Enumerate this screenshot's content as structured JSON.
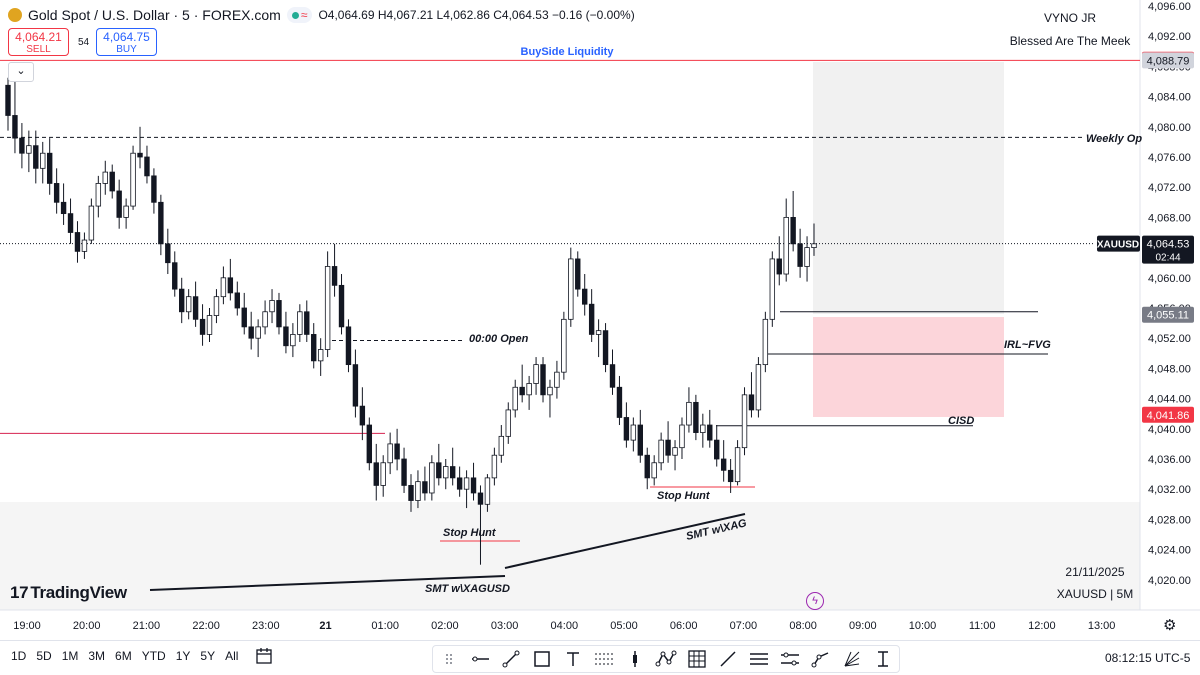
{
  "header": {
    "title": "Gold Spot / U.S. Dollar · 5 · FOREX.com",
    "ohlc": "O4,064.69  H4,067.21  L4,062.86  C4,064.53  −0.16 (−0.00%)",
    "sell_price": "4,064.21",
    "sell_label": "SELL",
    "buy_price": "4,064.75",
    "buy_label": "BUY",
    "spread": "54",
    "collapse_glyph": "⌄"
  },
  "watermark": {
    "name": "VYNO JR",
    "quote": "Blessed Are The Meek",
    "logo_text": "TradingView",
    "date": "21/11/2025",
    "symbol_interval": "XAUUSD | 5M"
  },
  "chart_data": {
    "type": "candlestick",
    "symbol": "XAUUSD",
    "interval": "5",
    "y_ticks": [
      "4,096.00",
      "4,092.00",
      "4,088.00",
      "4,084.00",
      "4,080.00",
      "4,076.00",
      "4,072.00",
      "4,068.00",
      "4,064.00",
      "4,060.00",
      "4,056.00",
      "4,052.00",
      "4,048.00",
      "4,044.00",
      "4,040.00",
      "4,036.00",
      "4,032.00",
      "4,028.00",
      "4,024.00",
      "4,020.00"
    ],
    "x_ticks": [
      "19:00",
      "20:00",
      "21:00",
      "22:00",
      "23:00",
      "21",
      "01:00",
      "02:00",
      "03:00",
      "04:00",
      "05:00",
      "06:00",
      "07:00",
      "08:00",
      "09:00",
      "10:00",
      "11:00",
      "12:00",
      "13:00"
    ],
    "ylim": [
      4017.5,
      4097.5
    ],
    "price_labels": [
      {
        "text": "4,088.88",
        "value": 4088.88,
        "color": "#f23645"
      },
      {
        "text": "4,088.79",
        "value": 4088.79,
        "color": "#d1d4dc"
      },
      {
        "text": "4,055.11",
        "value": 4055.11,
        "color": "#787b86"
      },
      {
        "text": "4,041.86",
        "value": 4041.86,
        "color": "#f23645"
      }
    ],
    "current_price": {
      "symbol": "XAUUSD",
      "price": "4,064.53",
      "countdown": "02:44",
      "value": 4064.53
    },
    "annotations": [
      "BuySide Liquidity",
      "Weekly Op",
      "00:00 Open",
      "IRL~FVG",
      "CISD",
      "Stop Hunt",
      "Stop Hunt",
      "SMT w\\XAGUSD",
      "SMT w\\XAG"
    ],
    "levels": {
      "buyside": 4088.8,
      "weekly_open": 4078.6,
      "open_0000": 4051.7,
      "irl_top": 4055.5,
      "irl_fvg": 4049.9,
      "cisd": 4040.4,
      "left_red": 4039.4
    },
    "candles": [
      [
        4085.5,
        4086.5,
        4079.5,
        4081.5
      ],
      [
        4081.5,
        4086.0,
        4076.5,
        4078.5
      ],
      [
        4078.5,
        4080.5,
        4074.5,
        4076.5
      ],
      [
        4076.5,
        4079.5,
        4074.0,
        4077.5
      ],
      [
        4077.5,
        4079.5,
        4072.5,
        4074.5
      ],
      [
        4074.5,
        4078.0,
        4072.5,
        4076.5
      ],
      [
        4076.5,
        4078.5,
        4071.0,
        4072.5
      ],
      [
        4072.5,
        4074.5,
        4068.5,
        4070.0
      ],
      [
        4070.0,
        4072.5,
        4067.0,
        4068.5
      ],
      [
        4068.5,
        4070.5,
        4064.5,
        4066.0
      ],
      [
        4066.0,
        4067.5,
        4062.0,
        4063.5
      ],
      [
        4063.5,
        4066.0,
        4062.5,
        4065.0
      ],
      [
        4065.0,
        4070.5,
        4064.5,
        4069.5
      ],
      [
        4069.5,
        4073.5,
        4068.0,
        4072.5
      ],
      [
        4072.5,
        4075.5,
        4071.0,
        4074.0
      ],
      [
        4074.0,
        4075.0,
        4070.5,
        4071.5
      ],
      [
        4071.5,
        4073.0,
        4066.5,
        4068.0
      ],
      [
        4068.0,
        4070.5,
        4066.5,
        4069.5
      ],
      [
        4069.5,
        4077.5,
        4069.0,
        4076.5
      ],
      [
        4076.5,
        4080.0,
        4074.5,
        4076.0
      ],
      [
        4076.0,
        4077.5,
        4072.5,
        4073.5
      ],
      [
        4073.5,
        4074.5,
        4068.5,
        4070.0
      ],
      [
        4070.0,
        4071.0,
        4063.0,
        4064.5
      ],
      [
        4064.5,
        4066.5,
        4060.5,
        4062.0
      ],
      [
        4062.0,
        4063.5,
        4057.5,
        4058.5
      ],
      [
        4058.5,
        4060.0,
        4054.0,
        4055.5
      ],
      [
        4055.5,
        4058.5,
        4054.5,
        4057.5
      ],
      [
        4057.5,
        4059.5,
        4053.5,
        4054.5
      ],
      [
        4054.5,
        4056.5,
        4051.0,
        4052.5
      ],
      [
        4052.5,
        4056.0,
        4051.5,
        4055.0
      ],
      [
        4055.0,
        4058.5,
        4054.0,
        4057.5
      ],
      [
        4057.5,
        4061.5,
        4056.5,
        4060.0
      ],
      [
        4060.0,
        4062.5,
        4057.0,
        4058.0
      ],
      [
        4058.0,
        4059.5,
        4055.0,
        4056.0
      ],
      [
        4056.0,
        4058.0,
        4052.5,
        4053.5
      ],
      [
        4053.5,
        4055.5,
        4050.5,
        4052.0
      ],
      [
        4052.0,
        4054.5,
        4049.5,
        4053.5
      ],
      [
        4053.5,
        4057.0,
        4052.5,
        4055.5
      ],
      [
        4055.5,
        4058.5,
        4054.0,
        4057.0
      ],
      [
        4057.0,
        4058.0,
        4052.5,
        4053.5
      ],
      [
        4053.5,
        4055.5,
        4050.0,
        4051.0
      ],
      [
        4051.0,
        4054.0,
        4049.5,
        4052.5
      ],
      [
        4052.5,
        4056.5,
        4051.5,
        4055.5
      ],
      [
        4055.5,
        4057.0,
        4051.5,
        4052.5
      ],
      [
        4052.5,
        4054.0,
        4048.0,
        4049.0
      ],
      [
        4049.0,
        4052.0,
        4047.0,
        4050.5
      ],
      [
        4050.5,
        4063.5,
        4049.5,
        4061.5
      ],
      [
        4061.5,
        4064.5,
        4057.5,
        4059.0
      ],
      [
        4059.0,
        4060.5,
        4052.5,
        4053.5
      ],
      [
        4053.5,
        4054.5,
        4047.5,
        4048.5
      ],
      [
        4048.5,
        4050.5,
        4041.5,
        4043.0
      ],
      [
        4043.0,
        4045.5,
        4038.5,
        4040.5
      ],
      [
        4040.5,
        4041.5,
        4034.5,
        4035.5
      ],
      [
        4035.5,
        4038.0,
        4030.5,
        4032.5
      ],
      [
        4032.5,
        4036.5,
        4031.0,
        4035.5
      ],
      [
        4035.5,
        4039.5,
        4034.0,
        4038.0
      ],
      [
        4038.0,
        4040.0,
        4034.5,
        4036.0
      ],
      [
        4036.0,
        4037.5,
        4031.5,
        4032.5
      ],
      [
        4032.5,
        4034.0,
        4029.0,
        4030.5
      ],
      [
        4030.5,
        4034.5,
        4029.5,
        4033.0
      ],
      [
        4033.0,
        4035.0,
        4030.5,
        4031.5
      ],
      [
        4031.5,
        4036.5,
        4030.5,
        4035.5
      ],
      [
        4035.5,
        4038.0,
        4032.5,
        4033.5
      ],
      [
        4033.5,
        4036.0,
        4032.0,
        4035.0
      ],
      [
        4035.0,
        4037.5,
        4032.5,
        4033.5
      ],
      [
        4033.5,
        4035.0,
        4031.0,
        4032.0
      ],
      [
        4032.0,
        4034.5,
        4029.5,
        4033.5
      ],
      [
        4033.5,
        4035.5,
        4030.5,
        4031.5
      ],
      [
        4031.5,
        4032.5,
        4022.0,
        4030.0
      ],
      [
        4030.0,
        4034.0,
        4029.0,
        4033.5
      ],
      [
        4033.5,
        4037.5,
        4032.5,
        4036.5
      ],
      [
        4036.5,
        4040.5,
        4035.5,
        4039.0
      ],
      [
        4039.0,
        4043.5,
        4038.0,
        4042.5
      ],
      [
        4042.5,
        4046.5,
        4041.5,
        4045.5
      ],
      [
        4045.5,
        4048.5,
        4043.5,
        4044.5
      ],
      [
        4044.5,
        4047.0,
        4042.5,
        4046.0
      ],
      [
        4046.0,
        4049.5,
        4044.5,
        4048.5
      ],
      [
        4048.5,
        4049.5,
        4043.5,
        4044.5
      ],
      [
        4044.5,
        4046.5,
        4041.5,
        4045.5
      ],
      [
        4045.5,
        4049.0,
        4044.0,
        4047.5
      ],
      [
        4047.5,
        4055.5,
        4046.5,
        4054.5
      ],
      [
        4054.5,
        4064.0,
        4053.5,
        4062.5
      ],
      [
        4062.5,
        4063.5,
        4057.5,
        4058.5
      ],
      [
        4058.5,
        4060.5,
        4055.0,
        4056.5
      ],
      [
        4056.5,
        4058.5,
        4051.5,
        4052.5
      ],
      [
        4052.5,
        4054.5,
        4049.5,
        4053.0
      ],
      [
        4053.0,
        4054.0,
        4047.5,
        4048.5
      ],
      [
        4048.5,
        4050.5,
        4044.5,
        4045.5
      ],
      [
        4045.5,
        4047.0,
        4040.5,
        4041.5
      ],
      [
        4041.5,
        4043.5,
        4037.5,
        4038.5
      ],
      [
        4038.5,
        4041.5,
        4037.0,
        4040.5
      ],
      [
        4040.5,
        4042.5,
        4035.5,
        4036.5
      ],
      [
        4036.5,
        4037.5,
        4032.0,
        4033.5
      ],
      [
        4033.5,
        4036.5,
        4032.5,
        4035.5
      ],
      [
        4035.5,
        4039.5,
        4034.5,
        4038.5
      ],
      [
        4038.5,
        4041.0,
        4035.5,
        4036.5
      ],
      [
        4036.5,
        4038.5,
        4034.5,
        4037.5
      ],
      [
        4037.5,
        4041.5,
        4036.0,
        4040.5
      ],
      [
        4040.5,
        4045.5,
        4039.5,
        4043.5
      ],
      [
        4043.5,
        4044.5,
        4038.5,
        4039.5
      ],
      [
        4039.5,
        4042.0,
        4037.5,
        4040.5
      ],
      [
        4040.5,
        4042.5,
        4037.5,
        4038.5
      ],
      [
        4038.5,
        4040.5,
        4035.0,
        4036.0
      ],
      [
        4036.0,
        4038.5,
        4033.0,
        4034.5
      ],
      [
        4034.5,
        4036.0,
        4031.5,
        4033.0
      ],
      [
        4033.0,
        4038.5,
        4032.5,
        4037.5
      ],
      [
        4037.5,
        4045.5,
        4036.5,
        4044.5
      ],
      [
        4044.5,
        4047.5,
        4041.5,
        4042.5
      ],
      [
        4042.5,
        4049.5,
        4041.5,
        4048.5
      ],
      [
        4048.5,
        4055.5,
        4047.5,
        4054.5
      ],
      [
        4054.5,
        4063.5,
        4053.5,
        4062.5
      ],
      [
        4062.5,
        4065.5,
        4059.0,
        4060.5
      ],
      [
        4060.5,
        4070.5,
        4059.5,
        4068.0
      ],
      [
        4068.0,
        4071.5,
        4063.5,
        4064.5
      ],
      [
        4064.5,
        4066.5,
        4060.0,
        4061.5
      ],
      [
        4061.5,
        4065.5,
        4059.5,
        4064.0
      ],
      [
        4064.0,
        4067.2,
        4062.9,
        4064.5
      ]
    ]
  },
  "toolbar": {
    "ranges": [
      "1D",
      "5D",
      "1M",
      "3M",
      "6M",
      "YTD",
      "1Y",
      "5Y",
      "All"
    ],
    "tools": [
      "cursor-tool",
      "line-tool",
      "trend-tool",
      "rectangle-tool",
      "text-tool",
      "fib-tool",
      "position-tool",
      "pattern-tool",
      "grid-tool",
      "brush-tool",
      "parallel-tool",
      "channel-tool",
      "path-tool",
      "gann-tool",
      "measure-tool"
    ],
    "clock": "08:12:15 UTC-5"
  }
}
